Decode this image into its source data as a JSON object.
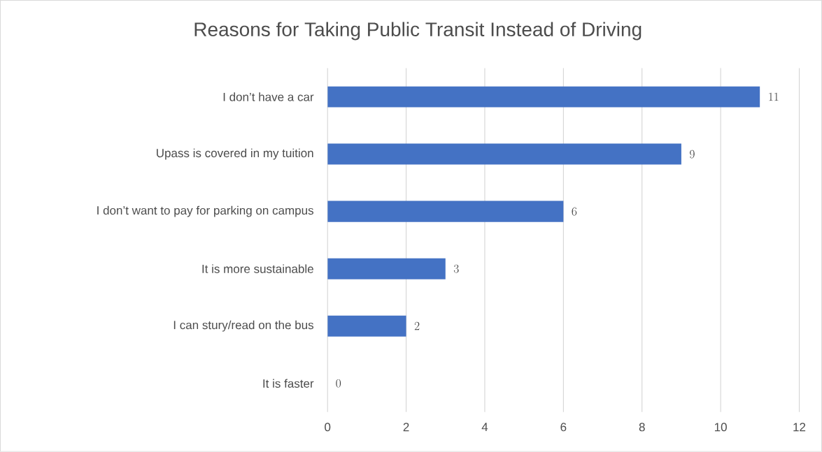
{
  "chart_data": {
    "type": "bar",
    "orientation": "horizontal",
    "title": "Reasons for Taking Public Transit Instead of Driving",
    "categories": [
      "I don’t have a car",
      "Upass is covered in my tuition",
      "I don’t want to pay for parking on campus",
      "It is more sustainable",
      "I can stury/read on the bus",
      "It is faster"
    ],
    "values": [
      11,
      9,
      6,
      3,
      2,
      0
    ],
    "color": "#4472c4",
    "xlim": [
      0,
      12
    ],
    "xticks": [
      0,
      2,
      4,
      6,
      8,
      10,
      12
    ],
    "grid": "x",
    "data_labels": true
  }
}
